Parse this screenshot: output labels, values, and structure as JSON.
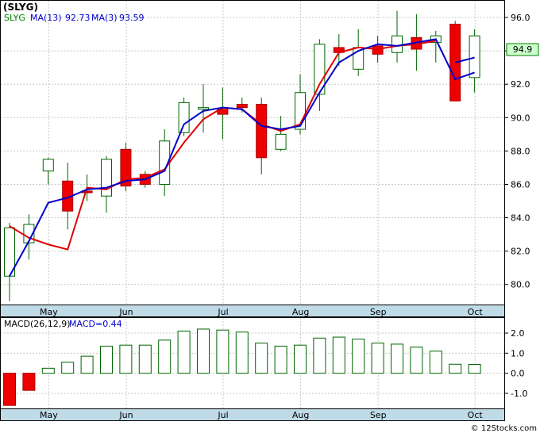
{
  "chart_data": [
    {
      "type": "candlestick",
      "title": "(SLYG)",
      "legend": [
        {
          "label": "SLYG",
          "color": "#008000"
        },
        {
          "label": "MA(13)",
          "value": "92.73",
          "color": "#0000cc"
        },
        {
          "label": "MA(3)",
          "value": "93.59",
          "color": "#0000cc"
        }
      ],
      "last_price_label": "94.9",
      "ylim": [
        78.8,
        97.0
      ],
      "y_ticks": [
        "80.0",
        "82.0",
        "84.0",
        "86.0",
        "88.0",
        "90.0",
        "92.0",
        "94.0",
        "96.0"
      ],
      "x_tick_labels": [
        "May",
        "Jun",
        "Jul",
        "Aug",
        "Sep",
        "Oct"
      ],
      "x_tick_index": [
        1,
        5,
        10,
        14,
        18,
        23
      ],
      "candles": [
        {
          "o": 80.5,
          "h": 83.7,
          "l": 79.0,
          "c": 83.4
        },
        {
          "o": 82.5,
          "h": 84.2,
          "l": 81.5,
          "c": 83.6
        },
        {
          "o": 86.8,
          "h": 87.6,
          "l": 86.0,
          "c": 87.5
        },
        {
          "o": 86.2,
          "h": 87.3,
          "l": 83.3,
          "c": 84.4
        },
        {
          "o": 85.6,
          "h": 86.6,
          "l": 85.0,
          "c": 85.5
        },
        {
          "o": 85.3,
          "h": 87.7,
          "l": 84.3,
          "c": 87.5
        },
        {
          "o": 88.1,
          "h": 88.5,
          "l": 85.6,
          "c": 85.9
        },
        {
          "o": 86.6,
          "h": 86.8,
          "l": 85.8,
          "c": 86.0
        },
        {
          "o": 86.0,
          "h": 89.3,
          "l": 85.3,
          "c": 88.6
        },
        {
          "o": 89.1,
          "h": 91.2,
          "l": 88.9,
          "c": 90.9
        },
        {
          "o": 90.5,
          "h": 92.0,
          "l": 89.1,
          "c": 90.6
        },
        {
          "o": 90.5,
          "h": 91.8,
          "l": 88.7,
          "c": 90.2
        },
        {
          "o": 90.8,
          "h": 91.2,
          "l": 90.3,
          "c": 90.6
        },
        {
          "o": 90.8,
          "h": 91.2,
          "l": 86.6,
          "c": 87.6
        },
        {
          "o": 88.1,
          "h": 90.1,
          "l": 88.0,
          "c": 89.0
        },
        {
          "o": 89.3,
          "h": 92.6,
          "l": 89.0,
          "c": 91.5
        },
        {
          "o": 91.4,
          "h": 94.7,
          "l": 90.4,
          "c": 94.4
        },
        {
          "o": 94.2,
          "h": 95.0,
          "l": 93.1,
          "c": 93.9
        },
        {
          "o": 92.9,
          "h": 95.3,
          "l": 92.5,
          "c": 94.2
        },
        {
          "o": 94.3,
          "h": 94.9,
          "l": 93.3,
          "c": 93.8
        },
        {
          "o": 93.9,
          "h": 96.4,
          "l": 93.3,
          "c": 94.9
        },
        {
          "o": 94.8,
          "h": 96.2,
          "l": 92.8,
          "c": 94.1
        },
        {
          "o": 94.5,
          "h": 95.2,
          "l": 93.3,
          "c": 94.9
        },
        {
          "o": 95.6,
          "h": 95.8,
          "l": 91.0,
          "c": 91.0
        },
        {
          "o": 92.4,
          "h": 95.3,
          "l": 91.5,
          "c": 94.9
        }
      ],
      "ma_short": [
        83.5,
        82.8,
        null,
        82.1,
        82.0,
        null,
        null,
        null,
        null,
        null,
        null,
        null,
        null,
        null,
        null,
        null,
        null,
        null,
        null,
        null,
        null,
        null,
        null,
        null,
        null
      ],
      "ma3": [
        83.5,
        82.8,
        82.4,
        82.1,
        85.8,
        85.7,
        86.3,
        86.4,
        86.9,
        88.5,
        89.9,
        90.6,
        90.5,
        89.6,
        89.2,
        89.6,
        92.0,
        93.9,
        94.2,
        94.1,
        94.3,
        94.4,
        94.6,
        93.3,
        93.6
      ],
      "ma13": [
        80.5,
        82.6,
        84.9,
        85.2,
        85.7,
        85.8,
        86.2,
        86.3,
        86.8,
        89.6,
        90.4,
        90.6,
        90.5,
        89.5,
        89.3,
        89.5,
        91.5,
        93.3,
        94.0,
        94.4,
        94.3,
        94.5,
        94.7,
        92.3,
        92.7
      ],
      "ma13_early": [
        80.5,
        82.6,
        84.9,
        85.2,
        85.7,
        85.8,
        86.2,
        86.3,
        86.8,
        null,
        null,
        null,
        null,
        null,
        null,
        null,
        null,
        null,
        null,
        null,
        null,
        null,
        null,
        null,
        null
      ]
    },
    {
      "type": "bar",
      "title": "MACD(26,12,9)",
      "legend": [
        {
          "label": "MACD(26,12,9)",
          "color": "#000000"
        },
        {
          "label": "MACD=0.44",
          "color": "#0000cc"
        }
      ],
      "ylim": [
        -1.75,
        2.75
      ],
      "y_ticks": [
        "2.0",
        "1.0",
        "0.0",
        "-1.0"
      ],
      "values": [
        -1.6,
        -0.85,
        0.25,
        0.55,
        0.85,
        1.35,
        1.4,
        1.4,
        1.65,
        2.1,
        2.2,
        2.15,
        2.05,
        1.5,
        1.35,
        1.4,
        1.75,
        1.8,
        1.7,
        1.5,
        1.45,
        1.3,
        1.1,
        0.45,
        0.44
      ]
    }
  ],
  "footer": {
    "copyright": "© 12Stocks.com"
  }
}
